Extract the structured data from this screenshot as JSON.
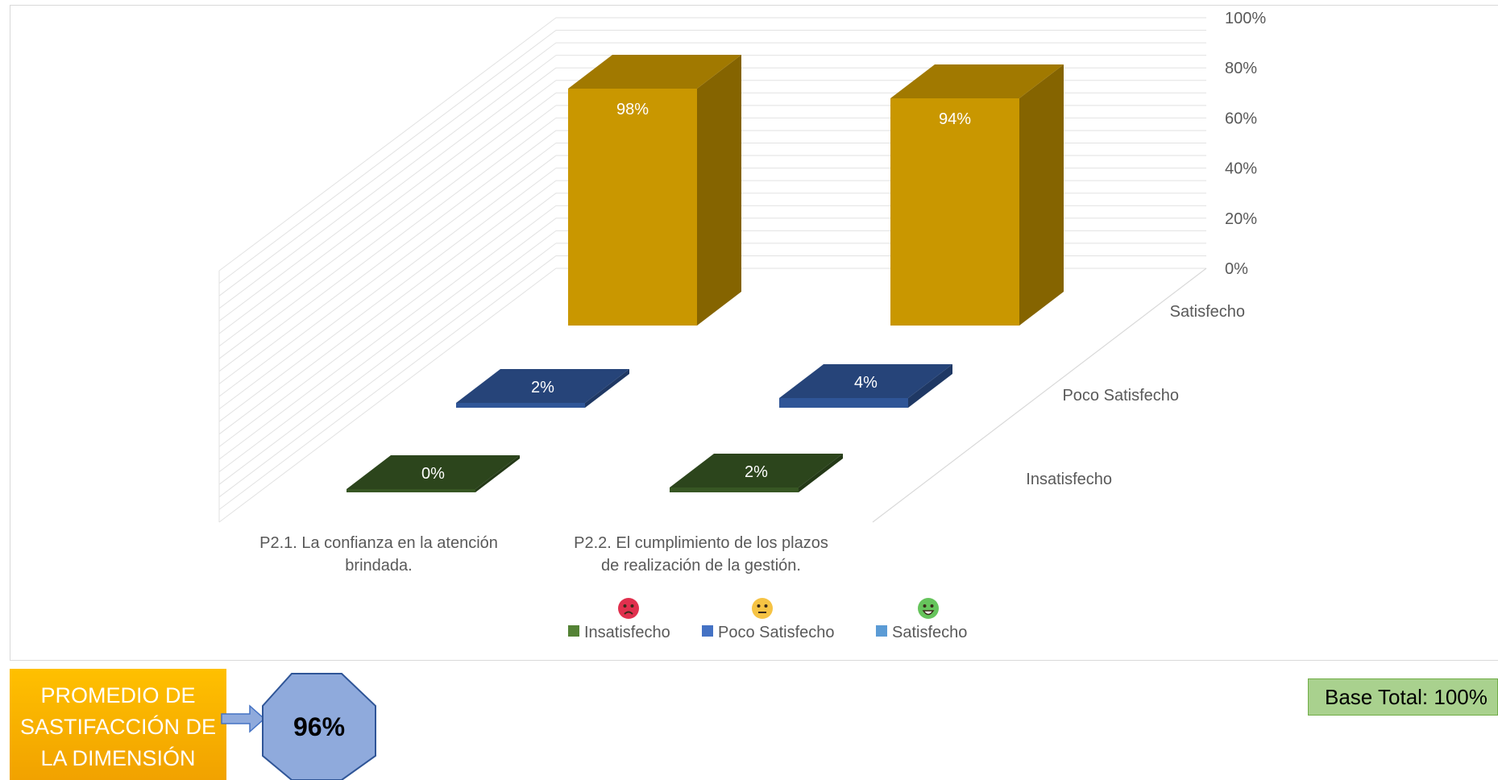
{
  "chart_data": {
    "type": "bar",
    "categories": [
      "P2.1. La confianza  en la atención brindada.",
      "P2.2. El cumplimiento de los plazos de realización de la gestión."
    ],
    "category_lines": [
      [
        "P2.1. La confianza  en la atención",
        "brindada."
      ],
      [
        "P2.2. El cumplimiento de los plazos",
        "de realización de la gestión."
      ]
    ],
    "series": [
      {
        "name": "Insatisfecho",
        "values": [
          0,
          2
        ],
        "labels": [
          "0%",
          "2%"
        ],
        "color": "#375623"
      },
      {
        "name": "Poco Satisfecho",
        "values": [
          2,
          4
        ],
        "labels": [
          "2%",
          "4%"
        ],
        "color": "#2f5597"
      },
      {
        "name": "Satisfecho",
        "values": [
          98,
          94
        ],
        "labels": [
          "98%",
          "94%"
        ],
        "color": "#c99700"
      }
    ],
    "yticks": [
      "0%",
      "20%",
      "40%",
      "60%",
      "80%",
      "100%"
    ],
    "ylim": [
      0,
      100
    ],
    "depth_labels": [
      "Satisfecho",
      "Poco Satisfecho",
      "Insatisfecho"
    ],
    "legend": {
      "placement": "bottom",
      "items": [
        {
          "name": "Insatisfecho",
          "color": "#548235",
          "icon": "angry-face-icon"
        },
        {
          "name": "Poco Satisfecho",
          "color": "#4472c4",
          "icon": "neutral-face-icon"
        },
        {
          "name": "Satisfecho",
          "color": "#5b9bd5",
          "icon": "grinning-face-icon"
        }
      ]
    }
  },
  "summary": {
    "promo_lines": [
      "PROMEDIO DE",
      "SASTIFACCIÓN DE",
      "LA DIMENSIÓN"
    ],
    "promo_value": "96%",
    "base_total": "Base Total: 100%"
  }
}
